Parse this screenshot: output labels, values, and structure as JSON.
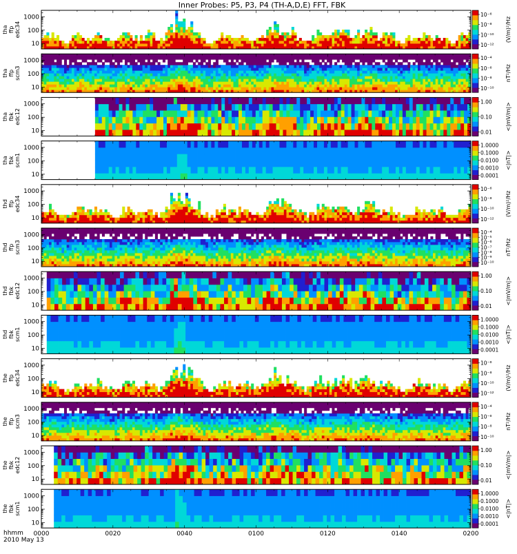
{
  "chart_data": {
    "type": "heatmap",
    "title": "Inner Probes: P5, P3, P4 (TH-A,D,E) FFT, FBK",
    "date": "2010 May 13",
    "time_label": "hhmm",
    "x_ticks": [
      "0000",
      "0020",
      "0040",
      "0100",
      "0120",
      "0140",
      "0200"
    ],
    "x_range_minutes": [
      0,
      120
    ],
    "y_scale": "log",
    "y_range_hz": [
      4,
      3000
    ],
    "y_ticks": [
      "10",
      "100",
      "1000"
    ],
    "colorbar_palette": [
      "#ffffff",
      "#6a0070",
      "#2020d0",
      "#0090ff",
      "#00d8d8",
      "#20e060",
      "#d8e800",
      "#ffa000",
      "#e00000"
    ],
    "panels": [
      {
        "ylabel": [
          "tha",
          "ffp",
          "edc34"
        ],
        "kind": "ffp-e",
        "data_start_min": 0,
        "colorbar_ticks": [
          "10⁻⁶",
          "10⁻⁸",
          "10⁻¹⁰",
          "10⁻¹²"
        ],
        "colorbar_unit": "(V/m)²/Hz"
      },
      {
        "ylabel": [
          "tha",
          "ffp",
          "scm3"
        ],
        "kind": "ffp-b",
        "data_start_min": 0,
        "colorbar_ticks": [
          "10⁻⁴",
          "10⁻⁶",
          "10⁻⁸",
          "10⁻¹⁰"
        ],
        "colorbar_unit": "nT²/Hz"
      },
      {
        "ylabel": [
          "tha",
          "fbk",
          "edc12"
        ],
        "kind": "fbk-e",
        "data_start_min": 15,
        "colorbar_ticks": [
          "1.00",
          "0.10",
          "0.01"
        ],
        "colorbar_unit": "<|mV/m|>"
      },
      {
        "ylabel": [
          "tha",
          "fbk",
          "scm1"
        ],
        "kind": "fbk-b",
        "data_start_min": 15,
        "colorbar_ticks": [
          "1.0000",
          "0.1000",
          "0.0100",
          "0.0010",
          "0.0001"
        ],
        "colorbar_unit": "<|nT|>"
      },
      {
        "ylabel": [
          "thd",
          "ffp",
          "edc34"
        ],
        "kind": "ffp-e",
        "data_start_min": 0,
        "colorbar_ticks": [
          "10⁻⁶",
          "10⁻⁸",
          "10⁻¹⁰",
          "10⁻¹²"
        ],
        "colorbar_unit": "(V/m)²/Hz"
      },
      {
        "ylabel": [
          "thd",
          "ffp",
          "scm3"
        ],
        "kind": "ffp-b",
        "data_start_min": 0,
        "colorbar_ticks": [
          "10⁻⁴",
          "10⁻⁵",
          "10⁻⁶",
          "10⁻⁷",
          "10⁻⁸",
          "10⁻⁹",
          "10⁻¹⁰"
        ],
        "colorbar_unit": "nT²/Hz"
      },
      {
        "ylabel": [
          "thd",
          "fbk",
          "edc12"
        ],
        "kind": "fbk-e",
        "data_start_min": 1.5,
        "colorbar_ticks": [
          "1.00",
          "0.10",
          "0.01"
        ],
        "colorbar_unit": "<|mV/m|>"
      },
      {
        "ylabel": [
          "thd",
          "fbk",
          "scm1"
        ],
        "kind": "fbk-b",
        "data_start_min": 1.5,
        "colorbar_ticks": [
          "1.0000",
          "0.1000",
          "0.0100",
          "0.0010",
          "0.0001"
        ],
        "colorbar_unit": "<|nT|>"
      },
      {
        "ylabel": [
          "the",
          "ffp",
          "edc34"
        ],
        "kind": "ffp-e",
        "data_start_min": 0,
        "colorbar_ticks": [
          "10⁻⁶",
          "10⁻⁸",
          "10⁻¹⁰",
          "10⁻¹²"
        ],
        "colorbar_unit": "(V/m)²/Hz"
      },
      {
        "ylabel": [
          "the",
          "ffp",
          "scm3"
        ],
        "kind": "ffp-b",
        "data_start_min": 0,
        "colorbar_ticks": [
          "10⁻⁴",
          "10⁻⁶",
          "10⁻⁸",
          "10⁻¹⁰"
        ],
        "colorbar_unit": "nT²/Hz"
      },
      {
        "ylabel": [
          "the",
          "fbk",
          "edc12"
        ],
        "kind": "fbk-e",
        "data_start_min": 3.5,
        "colorbar_ticks": [
          "1.00",
          "0.10",
          "0.01"
        ],
        "colorbar_unit": "<|mV/m|>"
      },
      {
        "ylabel": [
          "the",
          "fbk",
          "scm1"
        ],
        "kind": "fbk-b",
        "data_start_min": 3.5,
        "colorbar_ticks": [
          "1.0000",
          "0.1000",
          "0.0100",
          "0.0010",
          "0.0001"
        ],
        "colorbar_unit": "<|nT|>"
      }
    ]
  }
}
